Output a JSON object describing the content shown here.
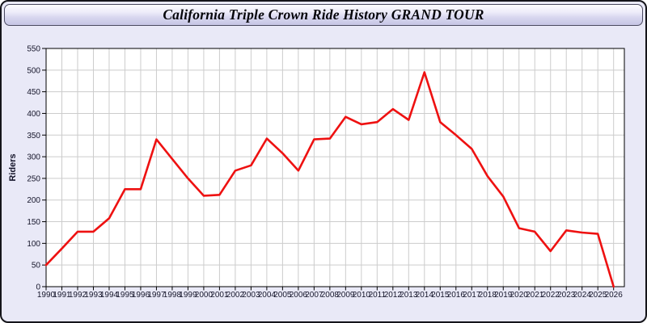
{
  "window": {
    "title": "California Triple Crown Ride History GRAND TOUR"
  },
  "chart_data": {
    "type": "line",
    "title": "California Triple Crown Ride History GRAND TOUR",
    "xlabel": "",
    "ylabel": "Riders",
    "categories": [
      "1990",
      "1991",
      "1992",
      "1993",
      "1994",
      "1995",
      "1996",
      "1997",
      "1998",
      "1999",
      "2000",
      "2001",
      "2002",
      "2003",
      "2004",
      "2005",
      "2006",
      "2007",
      "2008",
      "2009",
      "2010",
      "2011",
      "2012",
      "2013",
      "2014",
      "2015",
      "2016",
      "2017",
      "2018",
      "2019",
      "2020",
      "2021",
      "2022",
      "2023",
      "2024",
      "2025",
      "2026"
    ],
    "series": [
      {
        "name": "Riders",
        "values": [
          50,
          88,
          127,
          127,
          158,
          225,
          225,
          340,
          295,
          250,
          210,
          212,
          268,
          280,
          342,
          308,
          268,
          340,
          342,
          392,
          375,
          380,
          410,
          385,
          495,
          380,
          350,
          318,
          255,
          208,
          135,
          127,
          82,
          130,
          125,
          122,
          0
        ]
      }
    ],
    "ylim": [
      0,
      550
    ],
    "ytick_step": 50,
    "grid": true,
    "legend": false
  },
  "colors": {
    "line": "#ee1111",
    "plot_bg": "#ffffff",
    "grid": "#cccccc",
    "axis": "#000000",
    "tick_label": "#15152a",
    "ylabel_color": "#15152a"
  }
}
